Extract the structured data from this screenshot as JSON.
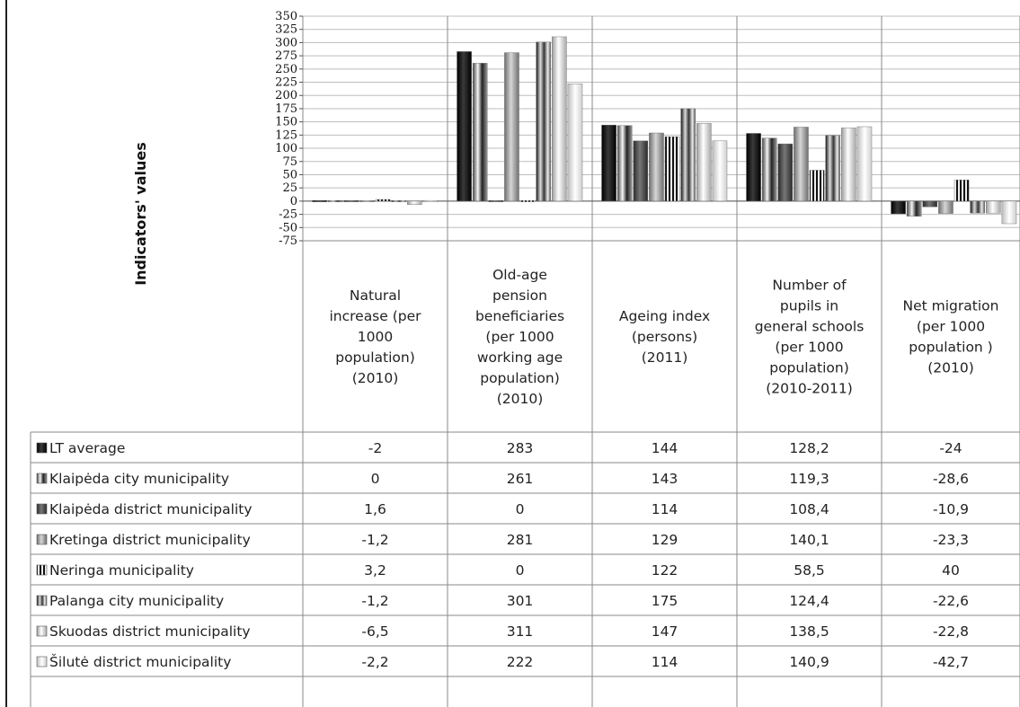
{
  "chart_data": {
    "type": "bar",
    "ylabel": "Indicators' values",
    "ylim": [
      -75,
      350
    ],
    "yticks": [
      350,
      325,
      300,
      275,
      250,
      225,
      200,
      175,
      150,
      125,
      100,
      75,
      50,
      25,
      0,
      -25,
      -50,
      -75
    ],
    "grid": true,
    "legend": "table",
    "categories": [
      [
        "Natural",
        "increase (per",
        "1000",
        "population)",
        "(2010)"
      ],
      [
        "Old-age",
        "pension",
        "beneficiaries",
        "(per 1000",
        "working age",
        "population)",
        "(2010)"
      ],
      [
        "Ageing index",
        "(persons)",
        "(2011)"
      ],
      [
        "Number of",
        "pupils in",
        "general schools",
        "(per 1000",
        "population)",
        "(2010-2011)"
      ],
      [
        "Net migration",
        "(per 1000",
        "population )",
        "(2010)"
      ]
    ],
    "series": [
      {
        "name": "LT average",
        "values": [
          -2,
          283,
          144,
          128.2,
          -24
        ],
        "display": [
          "-2",
          "283",
          "144",
          "128,2",
          "-24"
        ]
      },
      {
        "name": "Klaipėda city municipality",
        "values": [
          0,
          261,
          143,
          119.3,
          -28.6
        ],
        "display": [
          "0",
          "261",
          "143",
          "119,3",
          "-28,6"
        ]
      },
      {
        "name": "Klaipėda district municipality",
        "values": [
          1.6,
          0,
          114,
          108.4,
          -10.9
        ],
        "display": [
          "1,6",
          "0",
          "114",
          "108,4",
          "-10,9"
        ]
      },
      {
        "name": "Kretinga district municipality",
        "values": [
          -1.2,
          281,
          129,
          140.1,
          -23.3
        ],
        "display": [
          "-1,2",
          "281",
          "129",
          "140,1",
          "-23,3"
        ]
      },
      {
        "name": "Neringa municipality",
        "values": [
          3.2,
          0,
          122,
          58.5,
          40
        ],
        "display": [
          "3,2",
          "0",
          "122",
          "58,5",
          "40"
        ]
      },
      {
        "name": "Palanga city municipality",
        "values": [
          -1.2,
          301,
          175,
          124.4,
          -22.6
        ],
        "display": [
          "-1,2",
          "301",
          "175",
          "124,4",
          "-22,6"
        ]
      },
      {
        "name": "Skuodas district municipality",
        "values": [
          -6.5,
          311,
          147,
          138.5,
          -22.8
        ],
        "display": [
          "-6,5",
          "311",
          "147",
          "138,5",
          "-22,8"
        ]
      },
      {
        "name": "Šilutė district municipality",
        "values": [
          -2.2,
          222,
          114,
          140.9,
          -42.7
        ],
        "display": [
          "-2,2",
          "222",
          "114",
          "140,9",
          "-42,7"
        ]
      }
    ],
    "series_colors": [
      "#0a0a0a",
      "#9a9a9a",
      "#4a4a4a",
      "#a0a0a0",
      "#2a2a2a",
      "#6a6a6a",
      "#c8c8c8",
      "#e4e4e4"
    ]
  }
}
